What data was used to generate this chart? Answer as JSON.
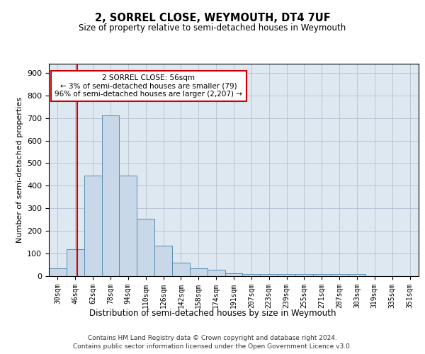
{
  "title": "2, SORREL CLOSE, WEYMOUTH, DT4 7UF",
  "subtitle": "Size of property relative to semi-detached houses in Weymouth",
  "xlabel": "Distribution of semi-detached houses by size in Weymouth",
  "ylabel": "Number of semi-detached properties",
  "bin_labels": [
    "30sqm",
    "46sqm",
    "62sqm",
    "78sqm",
    "94sqm",
    "110sqm",
    "126sqm",
    "142sqm",
    "158sqm",
    "174sqm",
    "191sqm",
    "207sqm",
    "223sqm",
    "239sqm",
    "255sqm",
    "271sqm",
    "287sqm",
    "303sqm",
    "319sqm",
    "335sqm",
    "351sqm"
  ],
  "bar_values": [
    35,
    120,
    445,
    710,
    445,
    255,
    135,
    60,
    35,
    28,
    12,
    10,
    10,
    10,
    10,
    10,
    8,
    10,
    0,
    0,
    0
  ],
  "bar_color": "#c8d8e8",
  "bar_edge_color": "#5b8db0",
  "annotation_text": "2 SORREL CLOSE: 56sqm\n← 3% of semi-detached houses are smaller (79)\n96% of semi-detached houses are larger (2,207) →",
  "annotation_box_color": "#ffffff",
  "annotation_box_edge": "#cc0000",
  "red_line_color": "#cc0000",
  "ylim": [
    0,
    940
  ],
  "yticks": [
    0,
    100,
    200,
    300,
    400,
    500,
    600,
    700,
    800,
    900
  ],
  "grid_color": "#b0b8cc",
  "bg_color": "#dde8f0",
  "footer1": "Contains HM Land Registry data © Crown copyright and database right 2024.",
  "footer2": "Contains public sector information licensed under the Open Government Licence v3.0."
}
